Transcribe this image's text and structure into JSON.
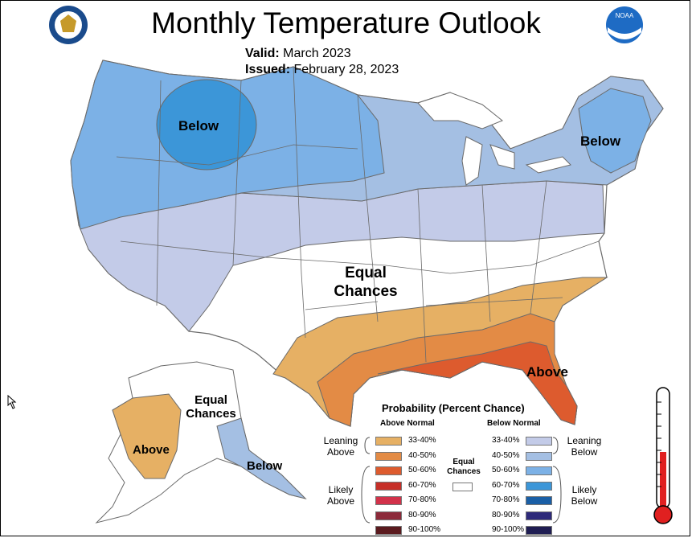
{
  "header": {
    "title": "Monthly Temperature Outlook",
    "valid_label": "Valid:",
    "valid_value": "March 2023",
    "issued_label": "Issued:",
    "issued_value": "February 28, 2023"
  },
  "map_labels": {
    "below_west": "Below",
    "below_northeast": "Below",
    "equal_chances_line1": "Equal",
    "equal_chances_line2": "Chances",
    "above_southeast": "Above",
    "alaska_equal_line1": "Equal",
    "alaska_equal_line2": "Chances",
    "alaska_above": "Above",
    "alaska_below": "Below"
  },
  "legend": {
    "title": "Probability (Percent Chance)",
    "above_header": "Above Normal",
    "below_header": "Below Normal",
    "equal_line1": "Equal",
    "equal_line2": "Chances",
    "leaning_above_line1": "Leaning",
    "leaning_above_line2": "Above",
    "likely_above_line1": "Likely",
    "likely_above_line2": "Above",
    "leaning_below_line1": "Leaning",
    "leaning_below_line2": "Below",
    "likely_below_line1": "Likely",
    "likely_below_line2": "Below",
    "above": [
      {
        "range": "33-40%",
        "color": "#e6b064"
      },
      {
        "range": "40-50%",
        "color": "#e38b45"
      },
      {
        "range": "50-60%",
        "color": "#dd5b2e"
      },
      {
        "range": "60-70%",
        "color": "#c62f28"
      },
      {
        "range": "70-80%",
        "color": "#d2324a"
      },
      {
        "range": "80-90%",
        "color": "#8c2a3a"
      },
      {
        "range": "90-100%",
        "color": "#5a1a1e"
      }
    ],
    "below": [
      {
        "range": "33-40%",
        "color": "#c3cbe8"
      },
      {
        "range": "40-50%",
        "color": "#a4bfe3"
      },
      {
        "range": "50-60%",
        "color": "#7cb1e6"
      },
      {
        "range": "60-70%",
        "color": "#3c96d8"
      },
      {
        "range": "70-80%",
        "color": "#1a5fa6"
      },
      {
        "range": "80-90%",
        "color": "#2e2a7a"
      },
      {
        "range": "90-100%",
        "color": "#1f1d52"
      }
    ]
  },
  "colors": {
    "land_equal": "#ffffff",
    "state_lines": "#6a6a6a",
    "thermometer_red": "#e02020"
  }
}
